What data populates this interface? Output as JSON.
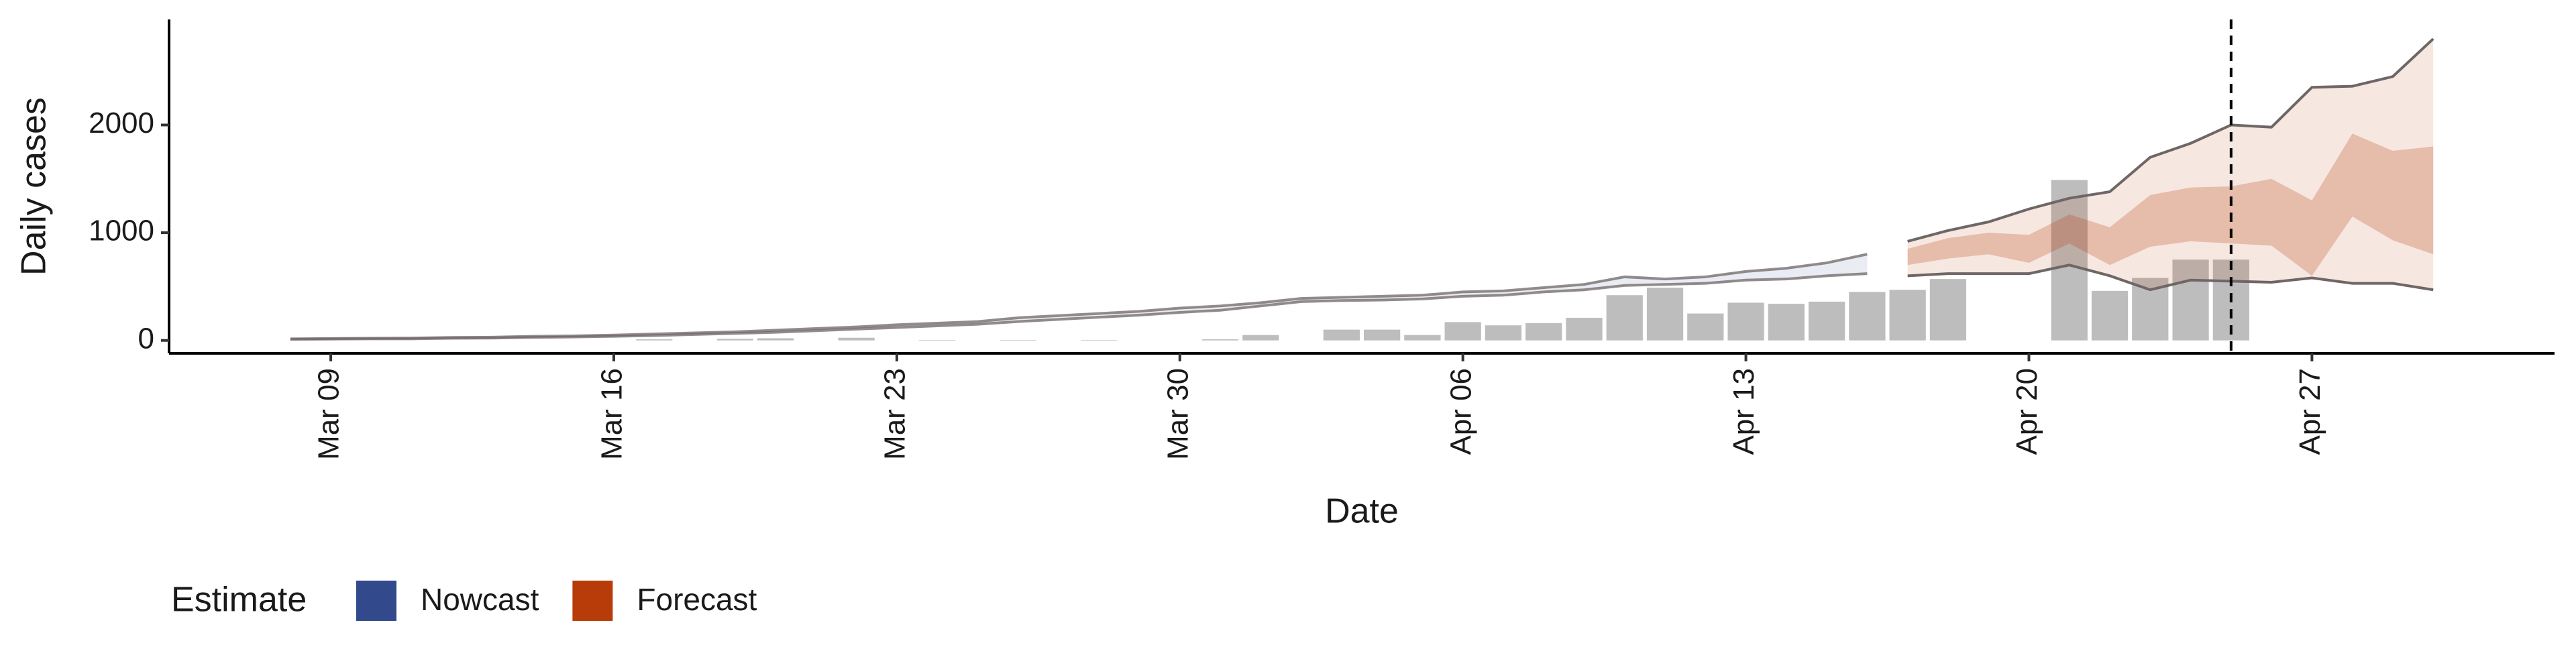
{
  "chart_data": {
    "type": "nowcast",
    "x_label": "Date",
    "y_label": "Daily cases",
    "xlim": [
      "Mar 05",
      "May 03"
    ],
    "xticks": [
      "Mar 09",
      "Mar 16",
      "Mar 23",
      "Mar 30",
      "Apr 06",
      "Apr 13",
      "Apr 20",
      "Apr 27"
    ],
    "ylim": [
      -120,
      2980
    ],
    "yticks": [
      0,
      1000,
      2000
    ],
    "vline": "Apr 25",
    "line_color": "#6f6666",
    "bars": {
      "color": "#bdbdbd",
      "x": [
        "Mar 17",
        "Mar 18",
        "Mar 19",
        "Mar 20",
        "Mar 21",
        "Mar 22",
        "Mar 23",
        "Mar 24",
        "Mar 25",
        "Mar 26",
        "Mar 27",
        "Mar 28",
        "Mar 29",
        "Mar 30",
        "Mar 31",
        "Apr 01",
        "Apr 02",
        "Apr 03",
        "Apr 04",
        "Apr 05",
        "Apr 06",
        "Apr 07",
        "Apr 08",
        "Apr 09",
        "Apr 10",
        "Apr 11",
        "Apr 12",
        "Apr 13",
        "Apr 14",
        "Apr 15",
        "Apr 16",
        "Apr 17",
        "Apr 18",
        "Apr 19",
        "Apr 20",
        "Apr 21",
        "Apr 22",
        "Apr 23",
        "Apr 24",
        "Apr 25"
      ],
      "values": [
        10,
        0,
        15,
        20,
        0,
        25,
        0,
        5,
        0,
        5,
        0,
        5,
        0,
        0,
        10,
        50,
        0,
        100,
        100,
        50,
        170,
        140,
        160,
        210,
        420,
        490,
        250,
        350,
        340,
        360,
        450,
        470,
        570,
        0,
        0,
        1490,
        460,
        580,
        750,
        750
      ]
    },
    "legend_title": "Estimate",
    "series": [
      {
        "name": "Nowcast",
        "color": "#32498c",
        "x": [
          "Mar 08",
          "Mar 09",
          "Mar 10",
          "Mar 11",
          "Mar 12",
          "Mar 13",
          "Mar 14",
          "Mar 15",
          "Mar 16",
          "Mar 17",
          "Mar 18",
          "Mar 19",
          "Mar 20",
          "Mar 21",
          "Mar 22",
          "Mar 23",
          "Mar 24",
          "Mar 25",
          "Mar 26",
          "Mar 27",
          "Mar 28",
          "Mar 29",
          "Mar 30",
          "Mar 31",
          "Apr 01",
          "Apr 02",
          "Apr 03",
          "Apr 04",
          "Apr 05",
          "Apr 06",
          "Apr 07",
          "Apr 08",
          "Apr 09",
          "Apr 10",
          "Apr 11",
          "Apr 12",
          "Apr 13",
          "Apr 14",
          "Apr 15",
          "Apr 16"
        ],
        "lower": [
          10,
          12,
          15,
          15,
          20,
          22,
          28,
          32,
          38,
          45,
          55,
          65,
          75,
          90,
          105,
          120,
          135,
          150,
          175,
          195,
          215,
          235,
          260,
          280,
          320,
          360,
          370,
          375,
          385,
          410,
          420,
          450,
          470,
          510,
          520,
          530,
          560,
          570,
          600,
          620
        ],
        "upper": [
          15,
          18,
          20,
          22,
          28,
          30,
          38,
          42,
          50,
          60,
          70,
          80,
          95,
          110,
          125,
          145,
          160,
          175,
          210,
          230,
          250,
          270,
          300,
          320,
          350,
          390,
          400,
          410,
          420,
          450,
          460,
          490,
          520,
          590,
          570,
          590,
          640,
          670,
          720,
          800
        ]
      },
      {
        "name": "Forecast",
        "color": "#b83c0a",
        "x": [
          "Apr 17",
          "Apr 18",
          "Apr 19",
          "Apr 20",
          "Apr 21",
          "Apr 22",
          "Apr 23",
          "Apr 24",
          "Apr 25",
          "Apr 26",
          "Apr 27",
          "Apr 28",
          "Apr 29",
          "Apr 30"
        ],
        "lower": [
          600,
          620,
          620,
          620,
          700,
          600,
          470,
          560,
          550,
          540,
          580,
          530,
          530,
          470
        ],
        "upper": [
          920,
          1020,
          1100,
          1220,
          1320,
          1380,
          1700,
          1830,
          2000,
          1980,
          2350,
          2360,
          2450,
          2800
        ],
        "inner_lower": [
          700,
          760,
          800,
          720,
          900,
          700,
          870,
          920,
          900,
          880,
          600,
          1150,
          930,
          800
        ],
        "inner_upper": [
          850,
          950,
          1000,
          980,
          1170,
          1050,
          1350,
          1420,
          1430,
          1500,
          1300,
          1920,
          1760,
          1800
        ]
      }
    ]
  }
}
